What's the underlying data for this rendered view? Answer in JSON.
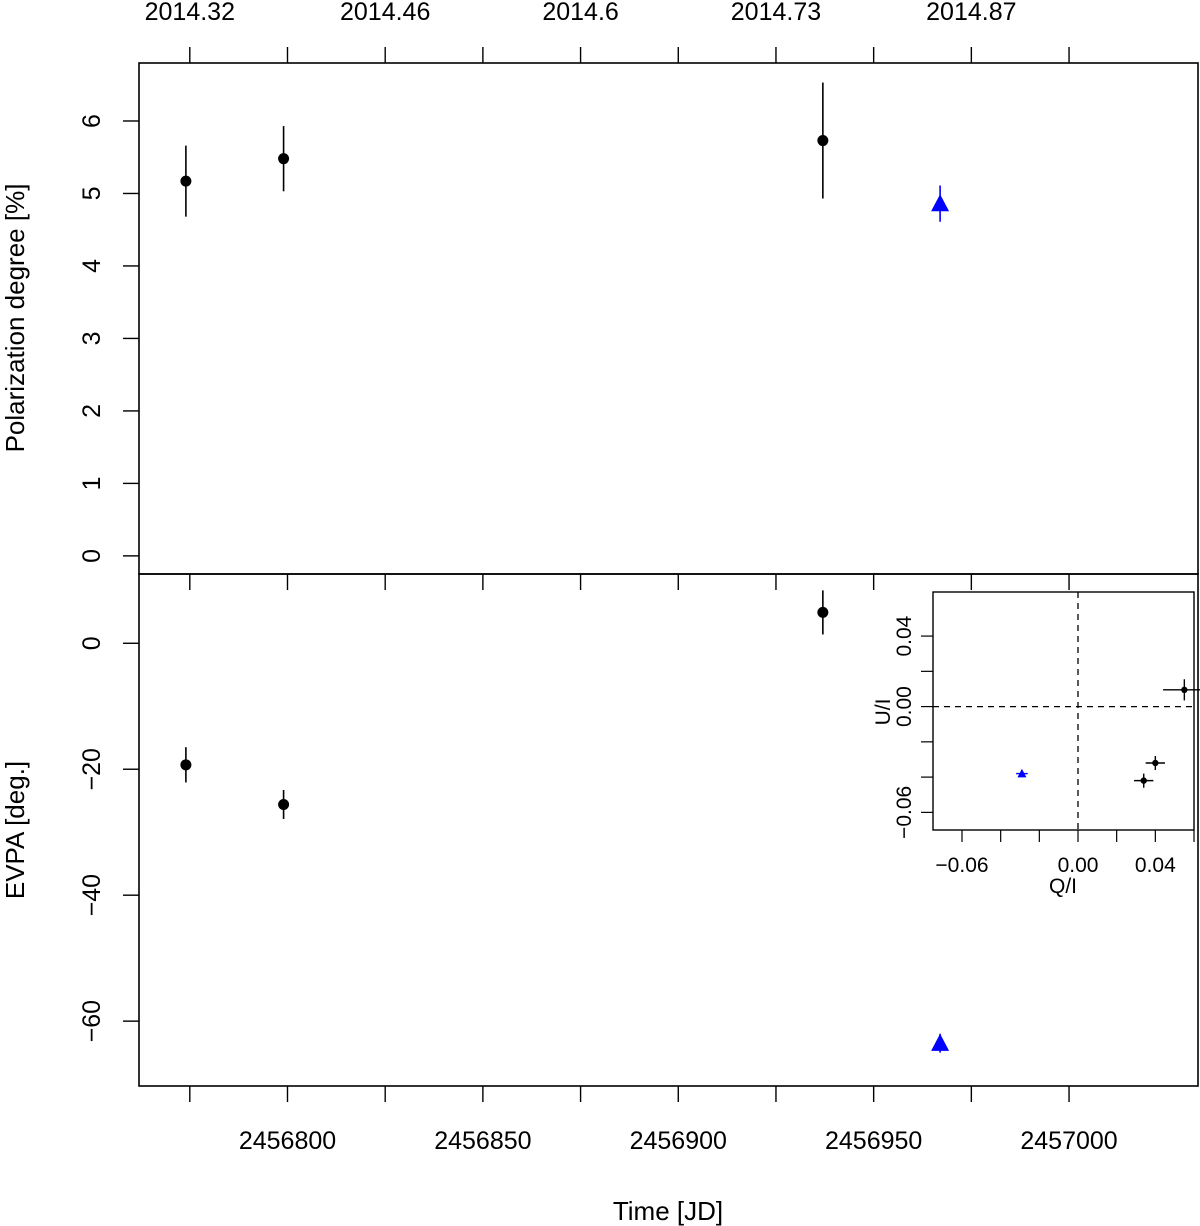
{
  "chart_data": [
    {
      "type": "scatter",
      "panel": "top",
      "ylabel": "Polarization degree [%]",
      "xlabel": "",
      "xlim": [
        2456762,
        2457033
      ],
      "ylim": [
        -0.25,
        6.8
      ],
      "yticks": [
        0,
        1,
        2,
        3,
        4,
        5,
        6
      ],
      "top_axis_ticks": [
        2456775,
        2456800,
        2456825,
        2456850,
        2456875,
        2456900,
        2456925,
        2456950,
        2456975,
        2457000
      ],
      "top_axis_labels": [
        {
          "x": 2456775,
          "label": "2014.32"
        },
        {
          "x": 2456825,
          "label": "2014.46"
        },
        {
          "x": 2456875,
          "label": "2014.6"
        },
        {
          "x": 2456925,
          "label": "2014.73"
        },
        {
          "x": 2456975,
          "label": "2014.87"
        }
      ],
      "series": [
        {
          "marker": "circle",
          "color": "#000000",
          "points": [
            {
              "x": 2456774,
              "y": 5.17,
              "err": 0.49
            },
            {
              "x": 2456799,
              "y": 5.48,
              "err": 0.45
            },
            {
              "x": 2456937,
              "y": 5.73,
              "err": 0.8
            }
          ]
        },
        {
          "marker": "triangle",
          "color": "#0000ff",
          "points": [
            {
              "x": 2456967,
              "y": 4.86,
              "err": 0.25
            }
          ]
        }
      ]
    },
    {
      "type": "scatter",
      "panel": "bottom",
      "ylabel": "EVPA [deg.]",
      "xlabel": "Time [JD]",
      "xlim": [
        2456762,
        2457033
      ],
      "ylim": [
        -70.3,
        11
      ],
      "yticks": [
        0,
        -20,
        -40,
        -60
      ],
      "xticks": [
        2456775,
        2456800,
        2456825,
        2456850,
        2456875,
        2456900,
        2456925,
        2456950,
        2456975,
        2457000
      ],
      "xtick_labels": [
        {
          "x": 2456800,
          "label": "2456800"
        },
        {
          "x": 2456850,
          "label": "2456850"
        },
        {
          "x": 2456900,
          "label": "2456900"
        },
        {
          "x": 2456950,
          "label": "2456950"
        },
        {
          "x": 2457000,
          "label": "2457000"
        }
      ],
      "series": [
        {
          "marker": "circle",
          "color": "#000000",
          "points": [
            {
              "x": 2456774,
              "y": -19.3,
              "err": 2.8
            },
            {
              "x": 2456799,
              "y": -25.6,
              "err": 2.3
            },
            {
              "x": 2456937,
              "y": 4.9,
              "err": 3.5
            }
          ]
        },
        {
          "marker": "triangle",
          "color": "#0000ff",
          "points": [
            {
              "x": 2456967,
              "y": -63.5,
              "err": 1.5
            }
          ]
        }
      ]
    },
    {
      "type": "scatter",
      "panel": "inset",
      "xlabel": "Q/I",
      "ylabel": "U/I",
      "xlim": [
        -0.075,
        0.06
      ],
      "ylim": [
        -0.07,
        0.065
      ],
      "xticks": [
        -0.06,
        -0.04,
        -0.02,
        0.0,
        0.02,
        0.04,
        0.06
      ],
      "xtick_labels": [
        {
          "x": -0.06,
          "label": "−0.06"
        },
        {
          "x": 0.0,
          "label": "0.00"
        },
        {
          "x": 0.04,
          "label": "0.04"
        }
      ],
      "yticks": [
        -0.06,
        -0.04,
        -0.02,
        0.0,
        0.02,
        0.04
      ],
      "ytick_labels": [
        {
          "y": -0.06,
          "label": "−0.06"
        },
        {
          "y": 0.0,
          "label": "0.00"
        },
        {
          "y": 0.04,
          "label": "0.04"
        }
      ],
      "reference_lines": {
        "x": 0,
        "y": 0,
        "style": "dashed"
      },
      "series": [
        {
          "marker": "circle",
          "color": "#000000",
          "points": [
            {
              "x": 0.055,
              "y": 0.0095,
              "xerr": 0.011,
              "yerr": 0.006
            },
            {
              "x": 0.04,
              "y": -0.032,
              "xerr": 0.005,
              "yerr": 0.004
            },
            {
              "x": 0.034,
              "y": -0.042,
              "xerr": 0.005,
              "yerr": 0.004
            }
          ]
        },
        {
          "marker": "triangle",
          "color": "#0000ff",
          "points": [
            {
              "x": -0.029,
              "y": -0.038,
              "xerr": 0.003,
              "yerr": 0.002
            }
          ]
        }
      ]
    }
  ]
}
